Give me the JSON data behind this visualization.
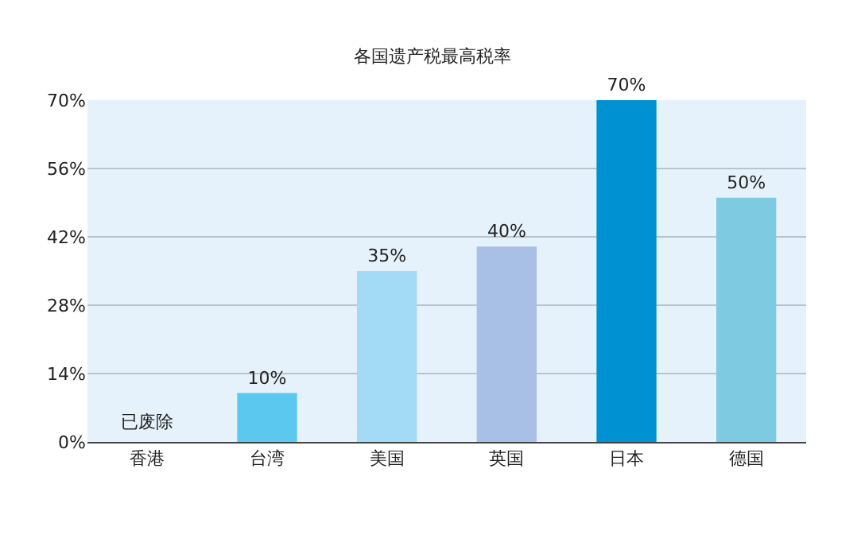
{
  "chart_data": {
    "type": "bar",
    "title": "各国遗产税最高税率",
    "categories": [
      "香港",
      "台湾",
      "美国",
      "英国",
      "日本",
      "德国"
    ],
    "values": [
      null,
      10,
      35,
      40,
      70,
      50
    ],
    "value_labels": [
      null,
      "10%",
      "35%",
      "40%",
      "70%",
      "50%"
    ],
    "colors": [
      "#5bc8f0",
      "#5bc8f0",
      "#a3daf5",
      "#a8bfe6",
      "#0091d2",
      "#7ecae0"
    ],
    "ylim": [
      0,
      70
    ],
    "yticks": [
      {
        "value": 0,
        "label": "0%"
      },
      {
        "value": 14,
        "label": "14%"
      },
      {
        "value": 28,
        "label": "28%"
      },
      {
        "value": 42,
        "label": "42%"
      },
      {
        "value": 56,
        "label": "56%"
      },
      {
        "value": 70,
        "label": "70%"
      }
    ],
    "grid": "y",
    "annotations": [
      "已废除"
    ]
  }
}
